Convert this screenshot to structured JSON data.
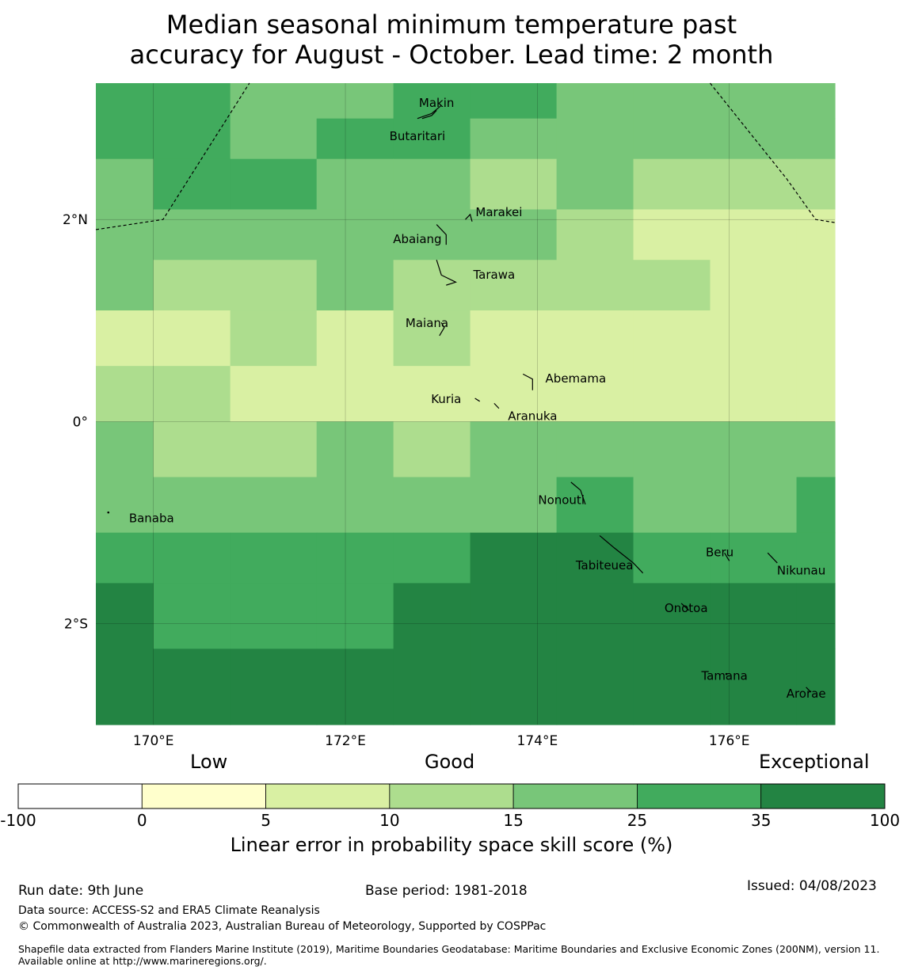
{
  "title": {
    "line1": "Median seasonal minimum temperature past",
    "line2": "accuracy for August - October. Lead time: 2 month"
  },
  "map": {
    "lon_range": [
      169.4,
      177.1
    ],
    "lat_range": [
      -3.0,
      3.35
    ],
    "lon_ticks": [
      {
        "value": 170,
        "label": "170°E"
      },
      {
        "value": 172,
        "label": "172°E"
      },
      {
        "value": 174,
        "label": "174°E"
      },
      {
        "value": 176,
        "label": "176°E"
      }
    ],
    "lat_ticks": [
      {
        "value": 2,
        "label": "2°N"
      },
      {
        "value": 0,
        "label": "0°"
      },
      {
        "value": -2,
        "label": "2°S"
      }
    ],
    "grid_lines": true,
    "cell_colors": {
      "c2": "#d9f0a3",
      "c3": "#addd8e",
      "c4": "#78c679",
      "c5": "#41ab5d",
      "c6": "#238443"
    },
    "grid_columns_lon": [
      169.4,
      170.0,
      170.8,
      171.7,
      172.5,
      173.3,
      174.2,
      175.0,
      175.8,
      176.7,
      177.1
    ],
    "grid_rows": [
      {
        "lat": [
          3.0,
          3.35
        ],
        "cells": [
          5,
          5,
          4,
          4,
          5,
          5,
          4,
          4,
          4,
          4
        ]
      },
      {
        "lat": [
          2.6,
          3.0
        ],
        "cells": [
          5,
          5,
          4,
          5,
          5,
          4,
          4,
          4,
          4,
          4
        ]
      },
      {
        "lat": [
          2.1,
          2.6
        ],
        "cells": [
          4,
          5,
          5,
          4,
          4,
          3,
          4,
          3,
          3,
          3
        ]
      },
      {
        "lat": [
          1.6,
          2.1
        ],
        "cells": [
          4,
          4,
          4,
          4,
          4,
          4,
          3,
          2,
          2,
          2
        ]
      },
      {
        "lat": [
          1.1,
          1.6
        ],
        "cells": [
          4,
          3,
          3,
          4,
          3,
          3,
          3,
          3,
          2,
          2
        ]
      },
      {
        "lat": [
          0.55,
          1.1
        ],
        "cells": [
          2,
          2,
          3,
          2,
          3,
          2,
          2,
          2,
          2,
          2
        ]
      },
      {
        "lat": [
          0.0,
          0.55
        ],
        "cells": [
          3,
          3,
          2,
          2,
          2,
          2,
          2,
          2,
          2,
          2
        ]
      },
      {
        "lat": [
          -0.55,
          0.0
        ],
        "cells": [
          4,
          3,
          3,
          4,
          3,
          4,
          4,
          4,
          4,
          4
        ]
      },
      {
        "lat": [
          -1.1,
          -0.55
        ],
        "cells": [
          4,
          4,
          4,
          4,
          4,
          4,
          5,
          4,
          4,
          5
        ]
      },
      {
        "lat": [
          -1.6,
          -1.1
        ],
        "cells": [
          5,
          5,
          5,
          5,
          5,
          6,
          6,
          5,
          5,
          5
        ]
      },
      {
        "lat": [
          -2.25,
          -1.6
        ],
        "cells": [
          6,
          5,
          5,
          5,
          6,
          6,
          6,
          6,
          6,
          6
        ]
      },
      {
        "lat": [
          -3.0,
          -2.25
        ],
        "cells": [
          6,
          6,
          6,
          6,
          6,
          6,
          6,
          6,
          6,
          6
        ]
      }
    ],
    "boundaries": [
      {
        "name": "eez-west",
        "points": [
          [
            169.4,
            1.9
          ],
          [
            170.1,
            2.0
          ],
          [
            171.0,
            3.35
          ]
        ]
      },
      {
        "name": "eez-east",
        "points": [
          [
            175.8,
            3.35
          ],
          [
            176.6,
            2.4
          ],
          [
            176.9,
            2.0
          ],
          [
            177.1,
            1.97
          ]
        ]
      }
    ],
    "islands": [
      {
        "name": "Makin",
        "label_lon": 172.95,
        "label_lat": 3.15,
        "outline": [
          [
            172.75,
            3.0
          ],
          [
            172.9,
            3.05
          ],
          [
            173.0,
            3.13
          ]
        ]
      },
      {
        "name": "Butaritari",
        "label_lon": 172.75,
        "label_lat": 2.82,
        "outline": [
          [
            172.8,
            3.0
          ],
          [
            172.9,
            3.03
          ],
          [
            172.95,
            3.08
          ]
        ]
      },
      {
        "name": "Marakei",
        "label_lon": 173.6,
        "label_lat": 2.07,
        "outline": [
          [
            173.25,
            2.0
          ],
          [
            173.3,
            2.05
          ],
          [
            173.32,
            1.98
          ]
        ]
      },
      {
        "name": "Abaiang",
        "label_lon": 172.75,
        "label_lat": 1.8,
        "outline": [
          [
            172.95,
            1.95
          ],
          [
            173.05,
            1.85
          ],
          [
            173.05,
            1.75
          ]
        ]
      },
      {
        "name": "Tarawa",
        "label_lon": 173.55,
        "label_lat": 1.45,
        "outline": [
          [
            172.95,
            1.6
          ],
          [
            173.0,
            1.45
          ],
          [
            173.15,
            1.38
          ],
          [
            173.05,
            1.35
          ]
        ]
      },
      {
        "name": "Maiana",
        "label_lon": 172.85,
        "label_lat": 0.97,
        "outline": [
          [
            173.0,
            0.98
          ],
          [
            173.03,
            0.93
          ],
          [
            172.98,
            0.85
          ]
        ]
      },
      {
        "name": "Abemama",
        "label_lon": 174.4,
        "label_lat": 0.42,
        "outline": [
          [
            173.85,
            0.47
          ],
          [
            173.95,
            0.42
          ],
          [
            173.95,
            0.31
          ]
        ]
      },
      {
        "name": "Kuria",
        "label_lon": 173.05,
        "label_lat": 0.22,
        "outline": [
          [
            173.35,
            0.23
          ],
          [
            173.4,
            0.2
          ]
        ]
      },
      {
        "name": "Aranuka",
        "label_lon": 173.95,
        "label_lat": 0.05,
        "outline": [
          [
            173.55,
            0.18
          ],
          [
            173.6,
            0.13
          ]
        ]
      },
      {
        "name": "Nonouti",
        "label_lon": 174.25,
        "label_lat": -0.78,
        "outline": [
          [
            174.35,
            -0.6
          ],
          [
            174.45,
            -0.68
          ],
          [
            174.5,
            -0.82
          ]
        ]
      },
      {
        "name": "Banaba",
        "label_lon": 169.98,
        "label_lat": -0.96,
        "outline": [
          [
            169.53,
            -0.9
          ]
        ]
      },
      {
        "name": "Tabiteuea",
        "label_lon": 174.7,
        "label_lat": -1.43,
        "outline": [
          [
            174.65,
            -1.13
          ],
          [
            174.8,
            -1.25
          ],
          [
            175.0,
            -1.4
          ],
          [
            175.1,
            -1.5
          ]
        ]
      },
      {
        "name": "Beru",
        "label_lon": 175.9,
        "label_lat": -1.3,
        "outline": [
          [
            175.95,
            -1.3
          ],
          [
            176.0,
            -1.38
          ]
        ]
      },
      {
        "name": "Nikunau",
        "label_lon": 176.75,
        "label_lat": -1.48,
        "outline": [
          [
            176.4,
            -1.3
          ],
          [
            176.5,
            -1.4
          ]
        ]
      },
      {
        "name": "Onotoa",
        "label_lon": 175.55,
        "label_lat": -1.85,
        "outline": [
          [
            175.5,
            -1.8
          ],
          [
            175.58,
            -1.87
          ]
        ]
      },
      {
        "name": "Tamana",
        "label_lon": 175.95,
        "label_lat": -2.52,
        "outline": [
          [
            175.97,
            -2.5
          ]
        ]
      },
      {
        "name": "Arorae",
        "label_lon": 176.8,
        "label_lat": -2.7,
        "outline": [
          [
            176.8,
            -2.63
          ],
          [
            176.85,
            -2.68
          ]
        ]
      }
    ]
  },
  "colorbar": {
    "categories": {
      "low": "Low",
      "good": "Good",
      "exceptional": "Exceptional"
    },
    "bins": [
      {
        "from": "-100",
        "to": "0",
        "color": "#ffffff"
      },
      {
        "from": "0",
        "to": "5",
        "color": "#ffffcc"
      },
      {
        "from": "5",
        "to": "10",
        "color": "#d9f0a3"
      },
      {
        "from": "10",
        "to": "15",
        "color": "#addd8e"
      },
      {
        "from": "15",
        "to": "25",
        "color": "#78c679"
      },
      {
        "from": "25",
        "to": "35",
        "color": "#41ab5d"
      },
      {
        "from": "35",
        "to": "100",
        "color": "#238443"
      }
    ],
    "tick_labels": [
      "-100",
      "0",
      "5",
      "10",
      "15",
      "25",
      "35",
      "100"
    ],
    "axis_label": "Linear error in probability space skill score (%)"
  },
  "footer": {
    "run_date": "Run date: 9th June",
    "base_period": "Base period: 1981-2018",
    "issued": "Issued: 04/08/2023",
    "data_source": "Data source: ACCESS-S2 and ERA5 Climate Reanalysis",
    "copyright": "© Commonwealth of Australia 2023, Australian Bureau of Meteorology, Supported by COSPPac",
    "shapefile": "Shapefile data extracted from Flanders Marine Institute (2019), Maritime Boundaries Geodatabase: Maritime Boundaries and Exclusive Economic Zones (200NM), version 11. Available online at http://www.marineregions.org/."
  }
}
